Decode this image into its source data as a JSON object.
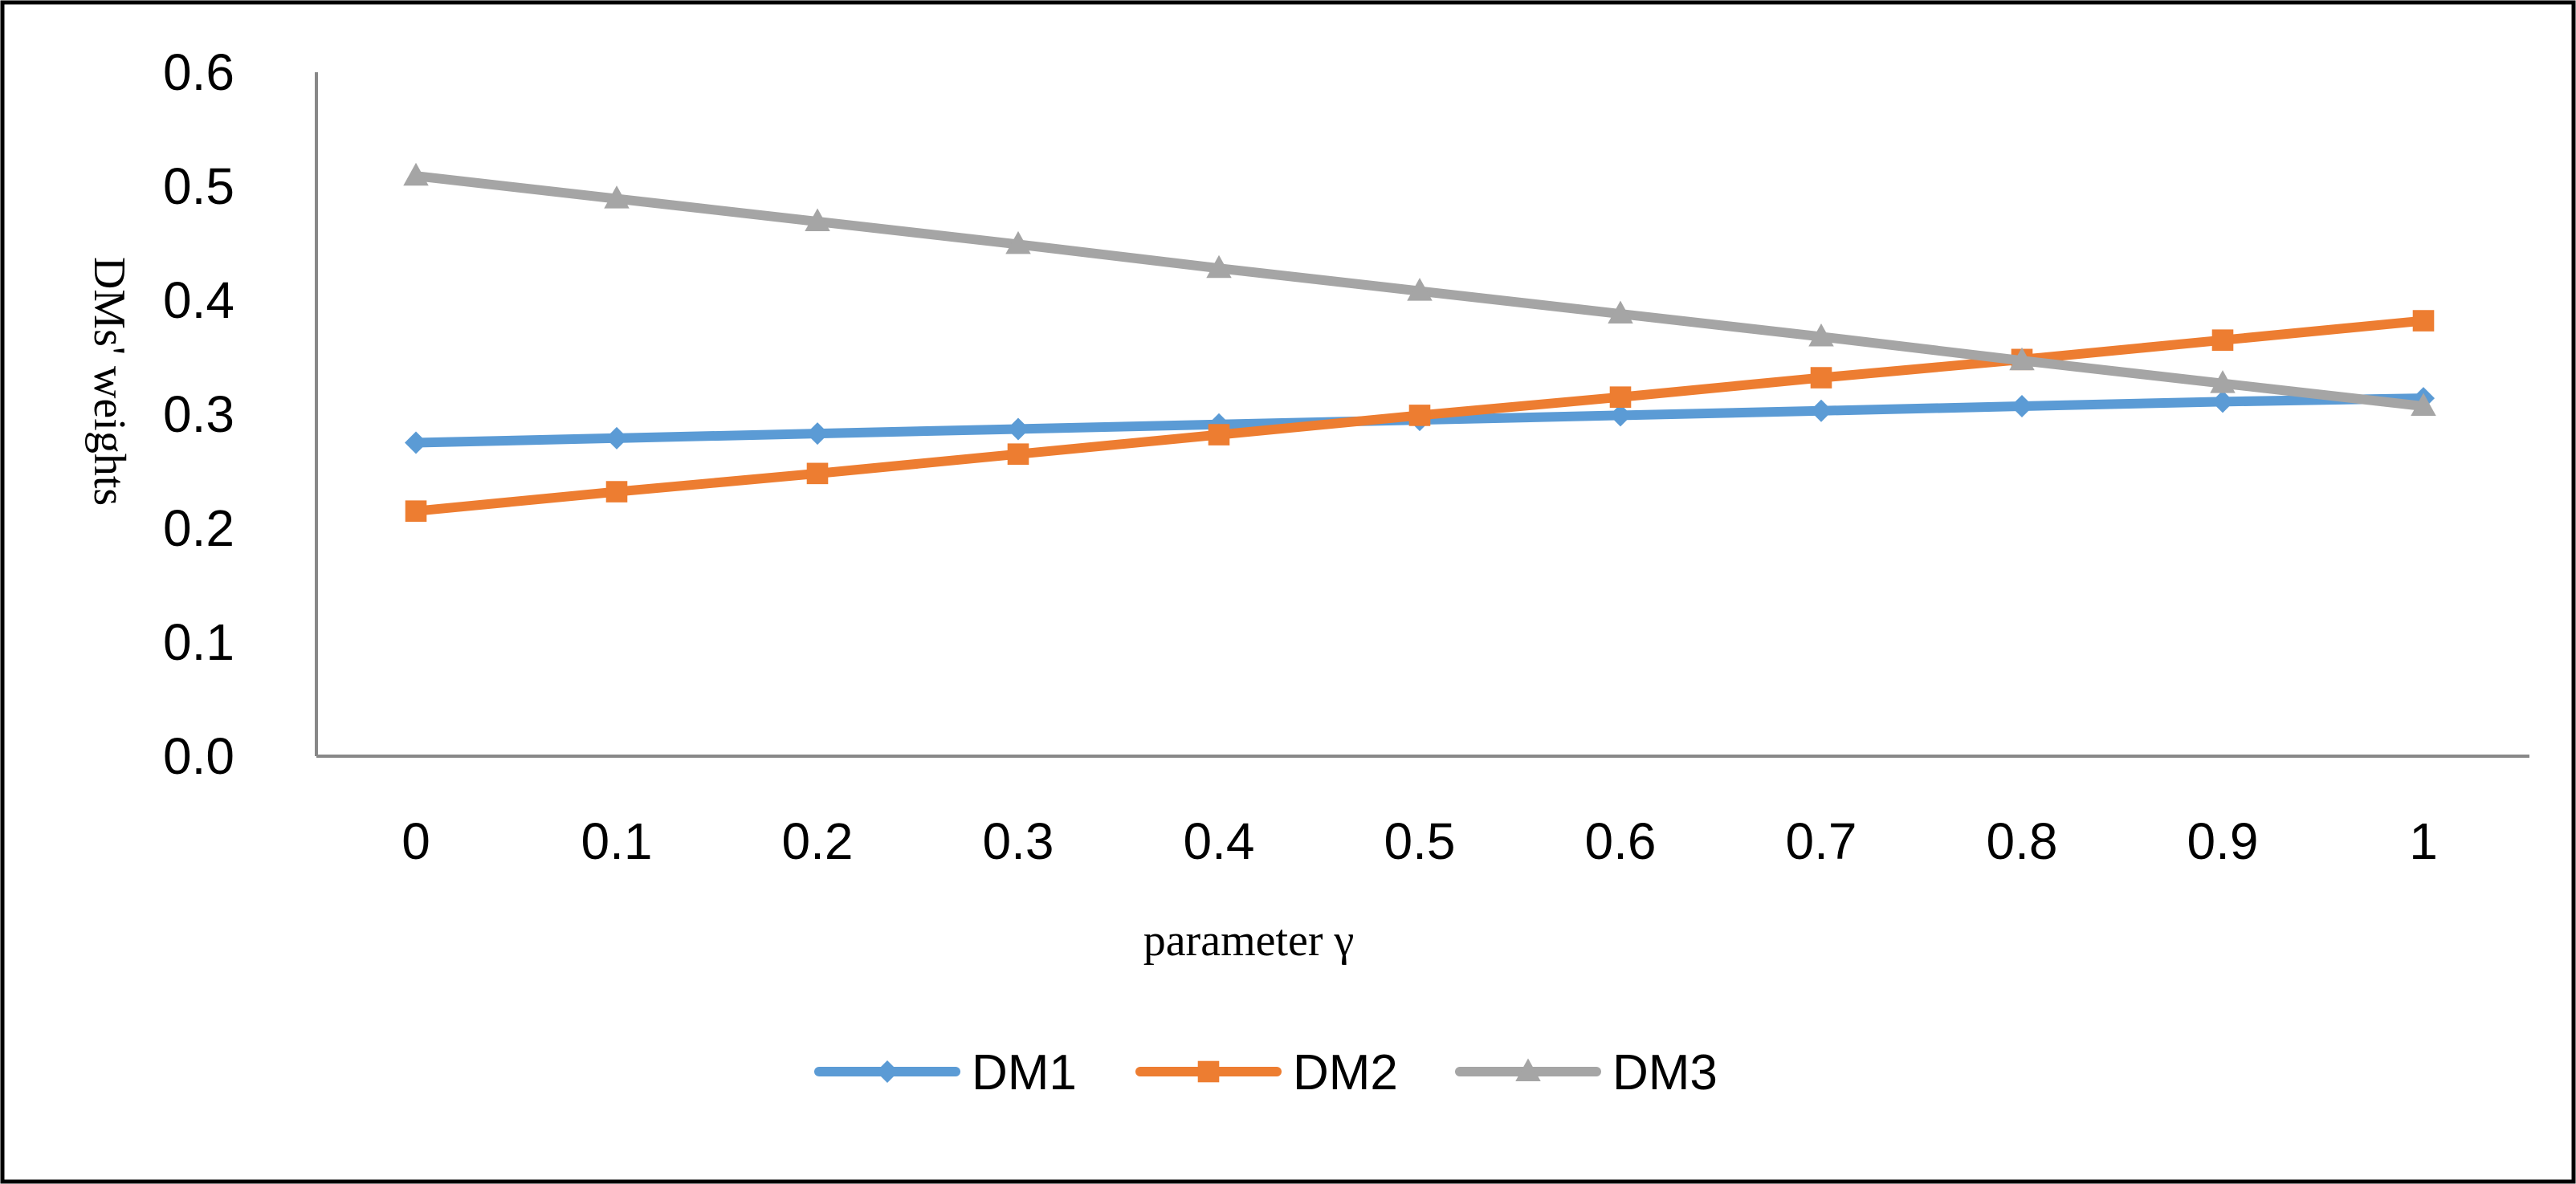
{
  "chart_data": {
    "type": "line",
    "title": "",
    "xlabel": "parameter γ",
    "ylabel": "DMs' weights",
    "x": [
      0,
      0.1,
      0.2,
      0.3,
      0.4,
      0.5,
      0.6,
      0.7,
      0.8,
      0.9,
      1
    ],
    "x_tick_labels": [
      "0",
      "0.1",
      "0.2",
      "0.3",
      "0.4",
      "0.5",
      "0.6",
      "0.7",
      "0.8",
      "0.9",
      "1"
    ],
    "y_tick_labels": [
      "0.0",
      "0.1",
      "0.2",
      "0.3",
      "0.4",
      "0.5",
      "0.6"
    ],
    "y_ticks": [
      0,
      0.1,
      0.2,
      0.3,
      0.4,
      0.5,
      0.6
    ],
    "ylim": [
      0,
      0.6
    ],
    "grid": false,
    "legend_position": "bottom",
    "series": [
      {
        "name": "DM1",
        "color": "#5B9BD5",
        "marker": "diamond",
        "values": [
          0.275,
          0.279,
          0.283,
          0.287,
          0.291,
          0.295,
          0.299,
          0.303,
          0.307,
          0.311,
          0.314
        ]
      },
      {
        "name": "DM2",
        "color": "#ED7D31",
        "marker": "square",
        "values": [
          0.215,
          0.232,
          0.248,
          0.265,
          0.282,
          0.299,
          0.315,
          0.332,
          0.348,
          0.365,
          0.382
        ]
      },
      {
        "name": "DM3",
        "color": "#A5A5A5",
        "marker": "triangle",
        "values": [
          0.509,
          0.489,
          0.469,
          0.449,
          0.428,
          0.408,
          0.388,
          0.368,
          0.347,
          0.327,
          0.307
        ]
      }
    ]
  }
}
